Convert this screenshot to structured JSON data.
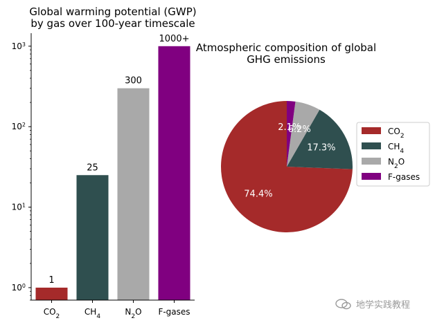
{
  "chart_data": [
    {
      "type": "bar",
      "title_line1": "Global warming potential (GWP)",
      "title_line2": "by gas over 100-year timescale",
      "yscale": "log",
      "ylim": [
        0.7,
        1450
      ],
      "categories": [
        "CO2",
        "CH4",
        "N2O",
        "F-gases"
      ],
      "tick_labels": [
        {
          "base": "CO",
          "sub": "2",
          "rest": ""
        },
        {
          "base": "CH",
          "sub": "4",
          "rest": ""
        },
        {
          "base": "N",
          "sub": "2",
          "rest": "O"
        },
        {
          "base": "F-gases",
          "sub": "",
          "rest": ""
        }
      ],
      "values": [
        1,
        25,
        300,
        1000
      ],
      "value_labels": [
        "1",
        "25",
        "300",
        "1000+"
      ],
      "colors": [
        "#a52a2a",
        "#2f4f4f",
        "#a9a9a9",
        "#800080"
      ],
      "y_ticks": [
        {
          "exp": 0,
          "label_base": "10",
          "label_exp": "0"
        },
        {
          "exp": 1,
          "label_base": "10",
          "label_exp": "1"
        },
        {
          "exp": 2,
          "label_base": "10",
          "label_exp": "2"
        },
        {
          "exp": 3,
          "label_base": "10",
          "label_exp": "3"
        }
      ]
    },
    {
      "type": "pie",
      "title_line1": "Atmospheric composition of global",
      "title_line2": "GHG emissions",
      "labels": [
        "CO2",
        "CH4",
        "N2O",
        "F-gases"
      ],
      "legend_labels": [
        {
          "base": "CO",
          "sub": "2",
          "rest": ""
        },
        {
          "base": "CH",
          "sub": "4",
          "rest": ""
        },
        {
          "base": "N",
          "sub": "2",
          "rest": "O"
        },
        {
          "base": "F-gases",
          "sub": "",
          "rest": ""
        }
      ],
      "values": [
        74.4,
        17.3,
        6.2,
        2.1
      ],
      "pct_labels": [
        "74.4%",
        "17.3%",
        "6.2%",
        "2.1%"
      ],
      "colors": [
        "#a52a2a",
        "#2f4f4f",
        "#a9a9a9",
        "#800080"
      ],
      "start_angle_deg": 90,
      "direction": "counterclockwise",
      "legend_position": "right"
    }
  ],
  "watermark": "地学实践教程"
}
